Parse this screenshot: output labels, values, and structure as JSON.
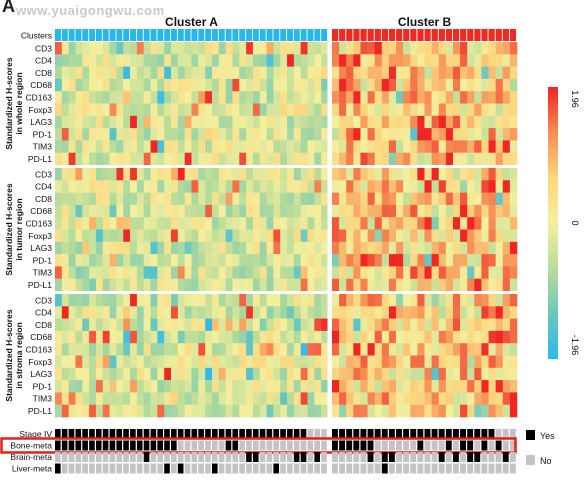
{
  "figure": {
    "panel_letter": "A",
    "watermark": "www.yuaigongwu.com"
  },
  "chart_data": {
    "type": "heatmap",
    "cluster_labels": [
      "Cluster A",
      "Cluster B"
    ],
    "clusters_row_label": "Clusters",
    "cluster_colors": {
      "Cluster A": "#29b6e8",
      "Cluster B": "#ee2b22"
    },
    "n_samples": {
      "Cluster A": 40,
      "Cluster B": 26
    },
    "markers": [
      "CD3",
      "CD4",
      "CD8",
      "CD68",
      "CD163",
      "Foxp3",
      "LAG3",
      "PD-1",
      "TIM3",
      "PD-L1"
    ],
    "blocks": [
      {
        "label_lines": [
          "Standardized H-scores",
          "in whole region"
        ]
      },
      {
        "label_lines": [
          "Standardized H-scores",
          "in tumor region"
        ]
      },
      {
        "label_lines": [
          "Standardized H-scores",
          "in stroma region"
        ]
      }
    ],
    "colorbar": {
      "max_label": "1.96",
      "mid_label": "0",
      "min_label": "-1.96",
      "range": [
        -1.96,
        1.96
      ],
      "colors": [
        "#2eb7ee",
        "#6cc8bd",
        "#b9dc99",
        "#f4ef9e",
        "#fcd57f",
        "#f68d55",
        "#ef2623"
      ]
    },
    "annotation_tracks": [
      {
        "label": "Stage IV"
      },
      {
        "label": "Bone-meta",
        "highlighted": true
      },
      {
        "label": "Brain-meta"
      },
      {
        "label": "Liver-meta"
      }
    ],
    "annotation_legend": {
      "yes_label": "Yes",
      "no_label": "No",
      "yes_color": "#000000",
      "no_color": "#c4c4c4"
    },
    "highlight_color": "#e0201c"
  }
}
